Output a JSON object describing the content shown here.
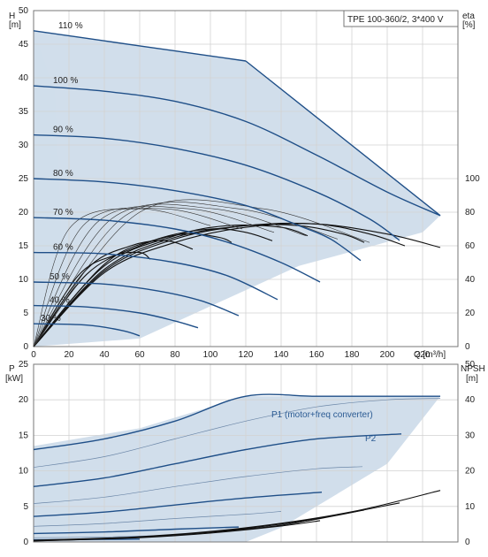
{
  "chart_data": [
    {
      "type": "line",
      "title": "TPE 100-360/2, 3*400 V",
      "xlabel": "Q [m³/h]",
      "ylabel": "H\n[m]",
      "ylabel_right": "eta\n[%]",
      "xlim": [
        0,
        240
      ],
      "ylim": [
        0,
        50
      ],
      "ylim_right": [
        0,
        100
      ],
      "xticks": [
        0,
        20,
        40,
        60,
        80,
        100,
        120,
        140,
        160,
        180,
        200,
        220
      ],
      "yticks": [
        0,
        5,
        10,
        15,
        20,
        25,
        30,
        35,
        40,
        45,
        50
      ],
      "yticks_right": [
        0,
        20,
        40,
        60,
        80,
        100
      ],
      "grid": true,
      "envelope": [
        [
          0,
          47
        ],
        [
          120,
          42.5
        ],
        [
          230,
          19.5
        ],
        [
          220,
          17
        ],
        [
          150,
          12
        ],
        [
          60,
          1.2
        ],
        [
          0,
          0
        ]
      ],
      "series": [
        {
          "name": "110 %",
          "x": [
            0,
            40,
            80,
            120
          ],
          "y": [
            47,
            45.5,
            44,
            42.5
          ]
        },
        {
          "name": "100 %",
          "x": [
            0,
            40,
            80,
            120,
            160,
            200,
            230
          ],
          "y": [
            38.8,
            38,
            36.5,
            33.5,
            28.5,
            23,
            19.5
          ]
        },
        {
          "name": "90 %",
          "x": [
            0,
            40,
            80,
            120,
            160,
            190,
            207
          ],
          "y": [
            31.5,
            31,
            29.5,
            27,
            23,
            19,
            15.8
          ]
        },
        {
          "name": "80 %",
          "x": [
            0,
            40,
            80,
            120,
            150,
            168,
            185
          ],
          "y": [
            25,
            24.5,
            23.2,
            21,
            18,
            16,
            12.8
          ]
        },
        {
          "name": "70 %",
          "x": [
            0,
            40,
            80,
            110,
            140,
            162
          ],
          "y": [
            19.2,
            18.8,
            17.5,
            15.5,
            12.5,
            9.6
          ]
        },
        {
          "name": "60 %",
          "x": [
            0,
            40,
            80,
            110,
            138
          ],
          "y": [
            14,
            13.8,
            12.5,
            10.5,
            7
          ]
        },
        {
          "name": "50 %",
          "x": [
            0,
            40,
            70,
            95,
            116
          ],
          "y": [
            9.6,
            9.3,
            8.3,
            6.8,
            4.6
          ]
        },
        {
          "name": "40 %",
          "x": [
            0,
            30,
            60,
            80,
            93
          ],
          "y": [
            6.1,
            5.9,
            5,
            3.8,
            2.8
          ]
        },
        {
          "name": "30 %",
          "x": [
            0,
            30,
            50,
            60
          ],
          "y": [
            3.4,
            3.2,
            2.4,
            1.6
          ]
        }
      ],
      "eta_series": [
        {
          "x": [
            0,
            40,
            80,
            120,
            160,
            200,
            230
          ],
          "y": [
            0,
            44,
            62,
            71,
            73,
            67,
            59
          ]
        },
        {
          "x": [
            0,
            40,
            80,
            120,
            160,
            190,
            210
          ],
          "y": [
            0,
            45,
            64,
            72,
            73,
            67,
            60
          ]
        },
        {
          "x": [
            0,
            40,
            80,
            120,
            150,
            175,
            187
          ],
          "y": [
            0,
            46,
            65,
            72,
            72,
            67,
            62
          ]
        },
        {
          "x": [
            0,
            40,
            80,
            110,
            140,
            155
          ],
          "y": [
            0,
            48,
            66,
            72,
            71,
            66
          ]
        },
        {
          "x": [
            0,
            40,
            70,
            100,
            120,
            135
          ],
          "y": [
            0,
            49,
            64,
            70,
            68,
            63
          ]
        },
        {
          "x": [
            0,
            30,
            60,
            85,
            105,
            112
          ],
          "y": [
            0,
            43,
            60,
            67,
            65,
            62
          ]
        },
        {
          "x": [
            0,
            30,
            55,
            75,
            90
          ],
          "y": [
            0,
            46,
            60,
            63,
            58
          ]
        },
        {
          "x": [
            0,
            25,
            45,
            60,
            66
          ],
          "y": [
            0,
            42,
            54,
            56,
            52
          ]
        }
      ]
    },
    {
      "type": "line",
      "xlabel": "",
      "ylabel": "P\n[kW]",
      "ylabel_right": "NPSH\n[m]",
      "xlim": [
        0,
        240
      ],
      "ylim": [
        0,
        25
      ],
      "ylim_right": [
        0,
        50
      ],
      "yticks": [
        0,
        5,
        10,
        15,
        20,
        25
      ],
      "yticks_right": [
        0,
        10,
        20,
        30,
        40,
        50
      ],
      "grid": true,
      "labels": {
        "p1": "P1 (motor+freq converter)",
        "p2": "P2"
      },
      "envelope": [
        [
          0,
          13.5
        ],
        [
          60,
          16
        ],
        [
          120,
          20.5
        ],
        [
          230,
          20.5
        ],
        [
          200,
          11
        ],
        [
          160,
          5
        ],
        [
          140,
          2
        ],
        [
          120,
          0
        ],
        [
          0,
          0
        ]
      ],
      "series": [
        {
          "name": "P1 (motor+freq converter)",
          "x": [
            0,
            40,
            80,
            120,
            160,
            200,
            230
          ],
          "y": [
            13,
            14.5,
            17,
            20.5,
            20.5,
            20.5,
            20.5
          ]
        },
        {
          "name": "",
          "x": [
            0,
            40,
            80,
            120,
            160,
            200,
            230
          ],
          "y": [
            10.5,
            12,
            14.5,
            17,
            19,
            20,
            20.2
          ]
        },
        {
          "name": "",
          "x": [
            0,
            40,
            80,
            120,
            160,
            208
          ],
          "y": [
            7.8,
            9,
            11,
            13,
            14.5,
            15.2
          ]
        },
        {
          "name": "",
          "x": [
            0,
            40,
            80,
            120,
            160,
            186
          ],
          "y": [
            5.4,
            6.3,
            7.8,
            9.2,
            10.3,
            10.6
          ]
        },
        {
          "name": "",
          "x": [
            0,
            40,
            80,
            120,
            163
          ],
          "y": [
            3.6,
            4.2,
            5.2,
            6.2,
            7
          ]
        },
        {
          "name": "",
          "x": [
            0,
            40,
            80,
            120,
            140
          ],
          "y": [
            2.2,
            2.6,
            3.3,
            3.9,
            4.3
          ]
        },
        {
          "name": "",
          "x": [
            0,
            40,
            80,
            116
          ],
          "y": [
            1.2,
            1.4,
            1.8,
            2.1
          ]
        },
        {
          "name": "",
          "x": [
            0,
            40,
            70,
            93
          ],
          "y": [
            0.6,
            0.7,
            0.9,
            1.1
          ]
        },
        {
          "name": "",
          "x": [
            0,
            30,
            60
          ],
          "y": [
            0.3,
            0.35,
            0.4
          ]
        }
      ],
      "npsh_series": [
        {
          "x": [
            0,
            60,
            120,
            180,
            230
          ],
          "y": [
            0.5,
            1.5,
            4,
            8.5,
            14.5
          ]
        },
        {
          "x": [
            0,
            60,
            120,
            165,
            207
          ],
          "y": [
            0.4,
            1.4,
            3.8,
            7,
            11
          ]
        },
        {
          "x": [
            0,
            60,
            120,
            150,
            187
          ],
          "y": [
            0.3,
            1.3,
            3.6,
            5.5,
            9
          ]
        },
        {
          "x": [
            0,
            60,
            100,
            140,
            162
          ],
          "y": [
            0.3,
            1.2,
            2.5,
            4.5,
            6
          ]
        }
      ]
    }
  ]
}
